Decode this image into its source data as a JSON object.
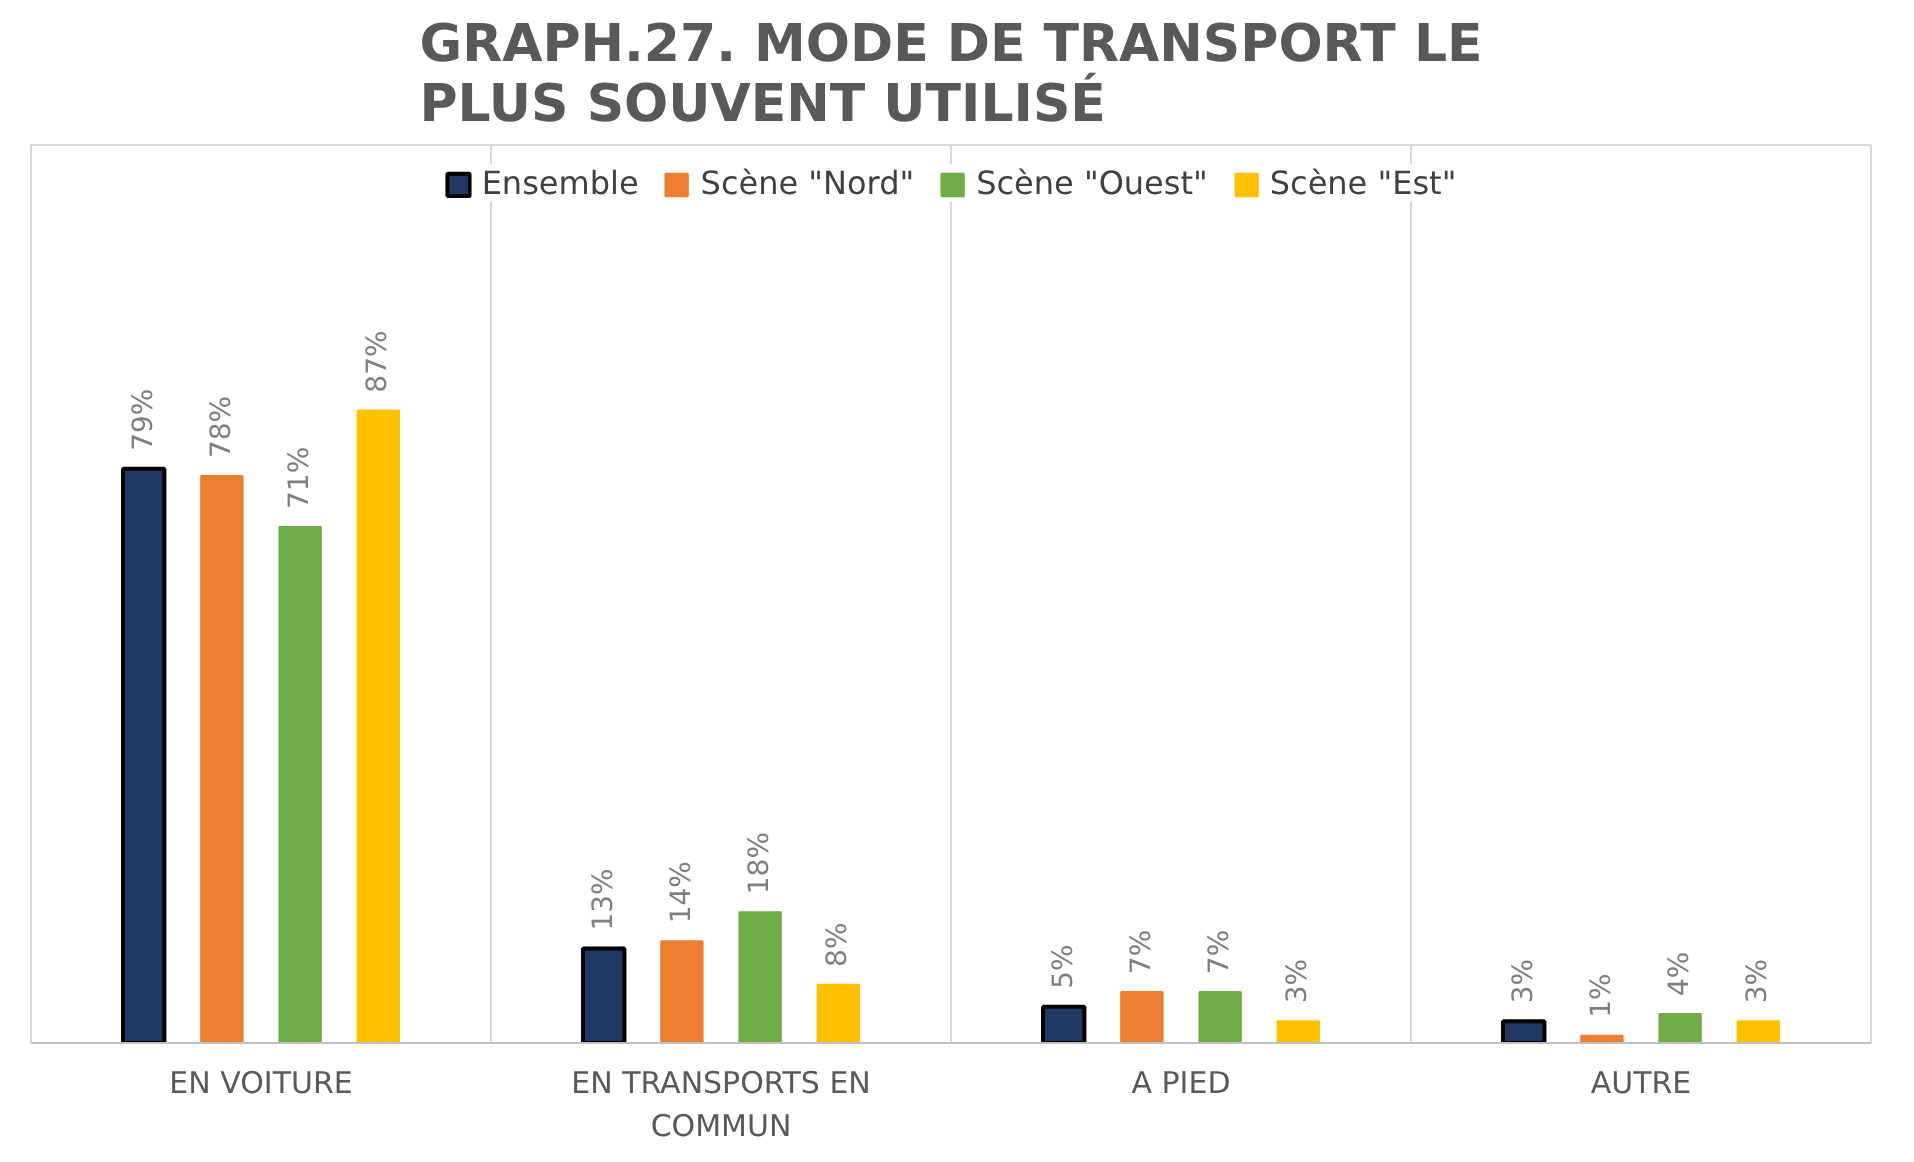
{
  "chart_data": {
    "type": "bar",
    "title": "GRAPH.27. MODE DE TRANSPORT LE PLUS SOUVENT UTILISÉ",
    "categories": [
      "EN VOITURE",
      "EN TRANSPORTS EN COMMUN",
      "A PIED",
      "AUTRE"
    ],
    "series": [
      {
        "name": "Ensemble",
        "color": "#203864",
        "values": [
          79,
          13,
          5,
          3
        ],
        "value_labels": [
          "79%",
          "13%",
          "5%",
          "3%"
        ]
      },
      {
        "name": "Scène \"Nord\"",
        "color": "#ed7d31",
        "values": [
          78,
          14,
          7,
          1
        ],
        "value_labels": [
          "78%",
          "14%",
          "7%",
          "1%"
        ]
      },
      {
        "name": "Scène \"Ouest\"",
        "color": "#70ad47",
        "values": [
          71,
          18,
          7,
          4
        ],
        "value_labels": [
          "71%",
          "18%",
          "7%",
          "4%"
        ]
      },
      {
        "name": "Scène \"Est\"",
        "color": "#ffc000",
        "values": [
          87,
          8,
          3,
          3
        ],
        "value_labels": [
          "87%",
          "8%",
          "3%",
          "3%"
        ]
      }
    ],
    "grid": "x",
    "legend": "top"
  }
}
